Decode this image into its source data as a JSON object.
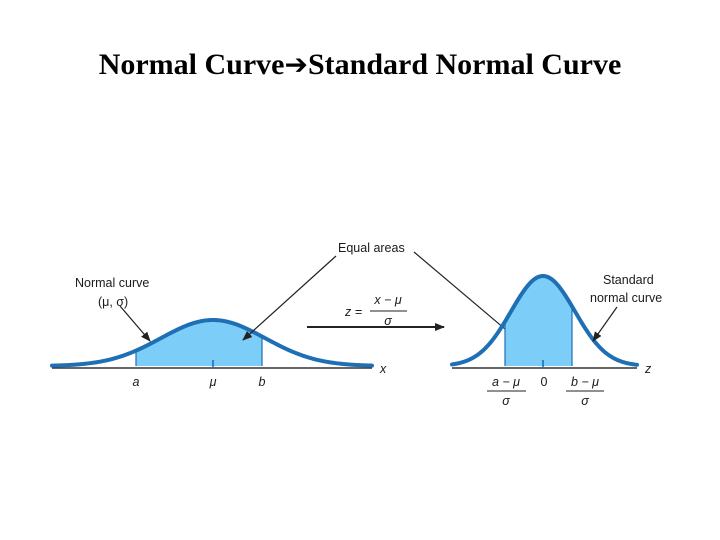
{
  "title": {
    "left": "Normal Curve",
    "arrow_glyph": "➔",
    "right": "Standard Normal Curve"
  },
  "colors": {
    "curve": "#1f6fb5",
    "fill": "#7ccdf7",
    "axis": "#333333",
    "text": "#1a1a1a"
  },
  "figure": {
    "equal_areas_label": "Equal areas",
    "normal_curve_label_line1": "Normal curve",
    "normal_curve_label_line2": "(μ, σ)",
    "standard_label_line1": "Standard",
    "standard_label_line2": "normal curve",
    "formula": {
      "lhs": "z =",
      "numerator": "x − μ",
      "denominator": "σ"
    },
    "left_axis": {
      "variable": "x",
      "ticks": [
        "a",
        "μ",
        "b"
      ]
    },
    "right_axis": {
      "variable": "z",
      "center_tick": "0",
      "left_tick": {
        "numerator": "a − μ",
        "denominator": "σ"
      },
      "right_tick": {
        "numerator": "b − μ",
        "denominator": "σ"
      }
    }
  }
}
